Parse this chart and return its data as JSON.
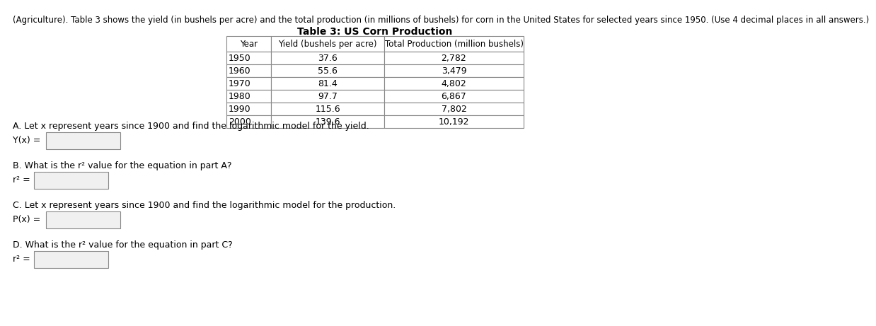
{
  "header_text": "(Agriculture). Table 3 shows the yield (in bushels per acre) and the total production (in millions of bushels) for corn in the United States for selected years since 1950. (Use 4 decimal places in all answers.)",
  "table_title": "Table 3: US Corn Production",
  "col_headers": [
    "Year",
    "Yield (bushels per acre)",
    "Total Production (million bushels)"
  ],
  "rows": [
    [
      "1950",
      "37.6",
      "2,782"
    ],
    [
      "1960",
      "55.6",
      "3,479"
    ],
    [
      "1970",
      "81.4",
      "4,802"
    ],
    [
      "1980",
      "97.7",
      "6,867"
    ],
    [
      "1990",
      "115.6",
      "7,802"
    ],
    [
      "2000",
      "139.6",
      "10,192"
    ]
  ],
  "part_A_label": "A. Let x represent years since 1900 and find the logarithmic model for the yield.",
  "part_A_eq": "Y(x) =",
  "part_B_label": "B. What is the r² value for the equation in part A?",
  "part_B_eq": "r² =",
  "part_C_label": "C. Let x represent years since 1900 and find the logarithmic model for the production.",
  "part_C_eq": "P(x) =",
  "part_D_label": "D. What is the r² value for the equation in part C?",
  "part_D_eq": "r² =",
  "bg_color": "#ffffff",
  "table_bg": "#ffffff",
  "header_bg": "#ffffff",
  "text_color": "#000000",
  "border_color": "#888888",
  "font_size_header": 8.5,
  "font_size_body": 9.0,
  "font_size_top": 8.5
}
